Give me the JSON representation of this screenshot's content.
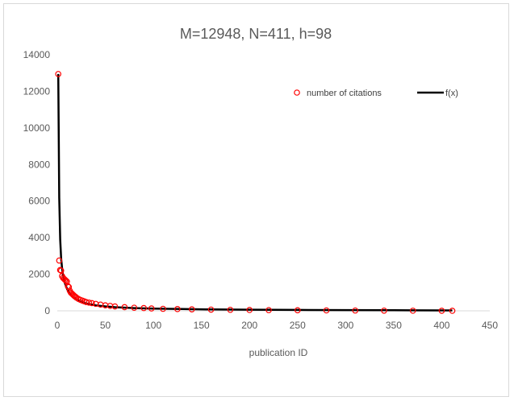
{
  "chart_data": {
    "type": "scatter",
    "title": "M=12948, N=411, h=98",
    "xlabel": "publication ID",
    "ylabel": "",
    "xlim": [
      0,
      450
    ],
    "ylim": [
      0,
      14000
    ],
    "x_ticks": [
      0,
      50,
      100,
      150,
      200,
      250,
      300,
      350,
      400,
      450
    ],
    "y_ticks": [
      0,
      2000,
      4000,
      6000,
      8000,
      10000,
      12000,
      14000
    ],
    "grid": "none",
    "legend_placement": "top-right",
    "series": [
      {
        "name": "number of citations",
        "kind": "markers",
        "marker": "open-circle",
        "color": "#ff0000",
        "points": [
          [
            1,
            12948
          ],
          [
            2,
            2750
          ],
          [
            3,
            2230
          ],
          [
            4,
            2200
          ],
          [
            5,
            1900
          ],
          [
            6,
            1800
          ],
          [
            7,
            1750
          ],
          [
            8,
            1700
          ],
          [
            9,
            1650
          ],
          [
            10,
            1600
          ],
          [
            11,
            1350
          ],
          [
            12,
            1300
          ],
          [
            13,
            1100
          ],
          [
            14,
            1000
          ],
          [
            15,
            950
          ],
          [
            16,
            900
          ],
          [
            17,
            850
          ],
          [
            18,
            800
          ],
          [
            19,
            760
          ],
          [
            20,
            720
          ],
          [
            22,
            650
          ],
          [
            24,
            600
          ],
          [
            26,
            560
          ],
          [
            28,
            520
          ],
          [
            30,
            480
          ],
          [
            33,
            450
          ],
          [
            36,
            420
          ],
          [
            40,
            380
          ],
          [
            45,
            340
          ],
          [
            50,
            300
          ],
          [
            55,
            270
          ],
          [
            60,
            240
          ],
          [
            70,
            200
          ],
          [
            80,
            170
          ],
          [
            90,
            150
          ],
          [
            98,
            130
          ],
          [
            110,
            110
          ],
          [
            125,
            95
          ],
          [
            140,
            80
          ],
          [
            160,
            65
          ],
          [
            180,
            55
          ],
          [
            200,
            45
          ],
          [
            220,
            38
          ],
          [
            250,
            30
          ],
          [
            280,
            22
          ],
          [
            310,
            16
          ],
          [
            340,
            10
          ],
          [
            370,
            6
          ],
          [
            400,
            3
          ],
          [
            411,
            1
          ]
        ]
      },
      {
        "name": "f(x)",
        "kind": "line",
        "color": "#000000",
        "points": [
          [
            1,
            12948
          ],
          [
            2,
            6200
          ],
          [
            3,
            3900
          ],
          [
            4,
            2850
          ],
          [
            5,
            2300
          ],
          [
            6,
            1950
          ],
          [
            8,
            1500
          ],
          [
            10,
            1220
          ],
          [
            12,
            1020
          ],
          [
            15,
            820
          ],
          [
            20,
            610
          ],
          [
            25,
            490
          ],
          [
            30,
            400
          ],
          [
            40,
            300
          ],
          [
            50,
            240
          ],
          [
            60,
            200
          ],
          [
            80,
            150
          ],
          [
            100,
            120
          ],
          [
            130,
            95
          ],
          [
            160,
            75
          ],
          [
            200,
            60
          ],
          [
            250,
            48
          ],
          [
            300,
            38
          ],
          [
            350,
            30
          ],
          [
            400,
            24
          ],
          [
            411,
            22
          ]
        ]
      }
    ]
  },
  "colors": {
    "markers": "#ff0000",
    "line": "#000000",
    "axis": "#d9d9d9",
    "text": "#595959"
  }
}
